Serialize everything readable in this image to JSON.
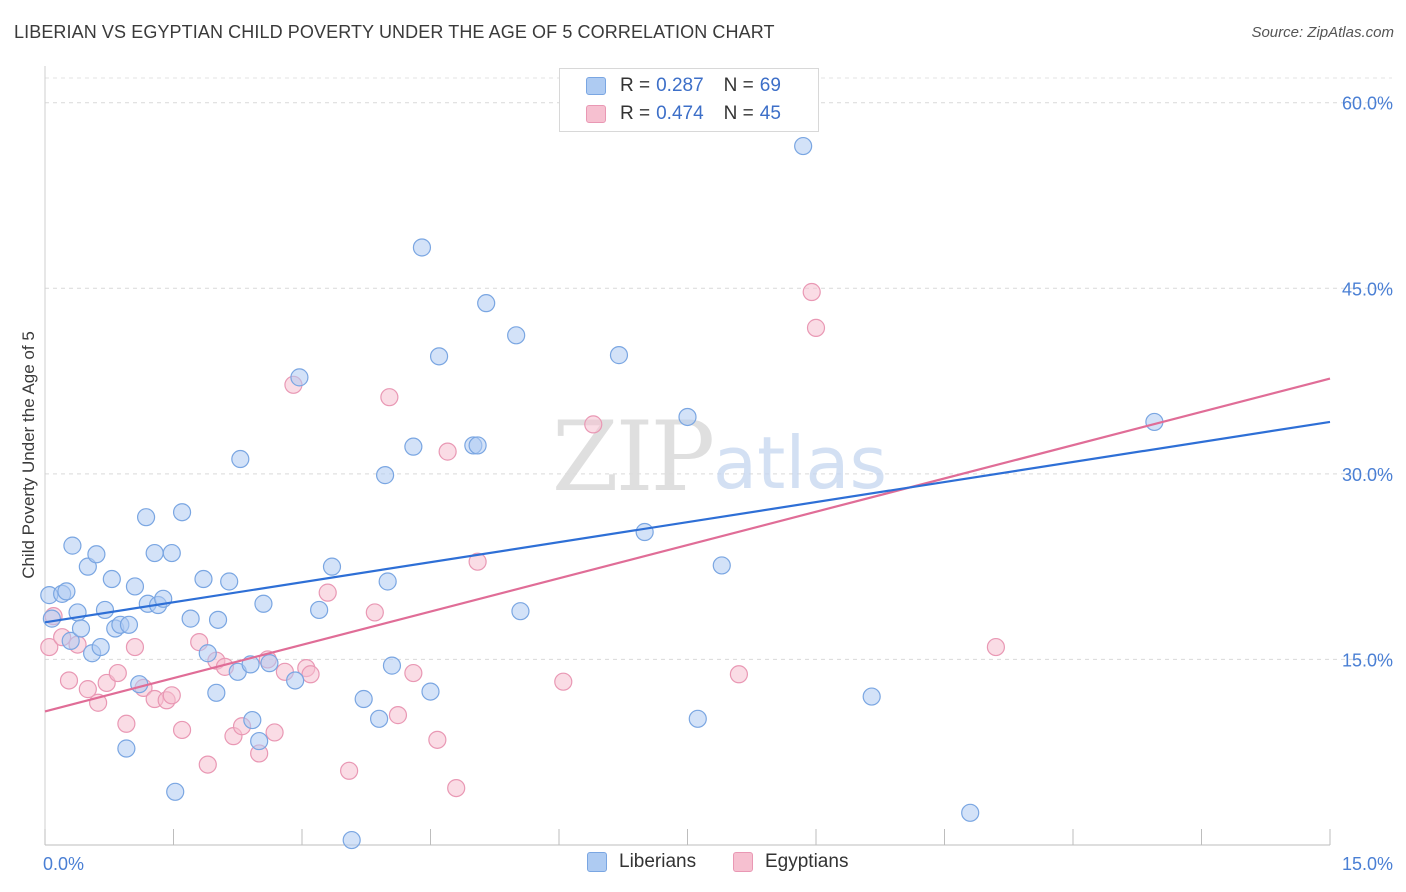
{
  "title": "LIBERIAN VS EGYPTIAN CHILD POVERTY UNDER THE AGE OF 5 CORRELATION CHART",
  "source": "Source: ZipAtlas.com",
  "watermark": {
    "zip": "ZIP",
    "atlas": "atlas"
  },
  "colors": {
    "liberian_fill": "#aecbf2",
    "liberian_stroke": "#7aa6e2",
    "liberian_line": "#2e6fd6",
    "egyptian_fill": "#f6c0d0",
    "egyptian_stroke": "#e998b4",
    "egyptian_line": "#e06d97",
    "tick_text": "#4a7fd4"
  },
  "legend": {
    "rows": [
      {
        "r_label": "R =",
        "r_value": "0.287",
        "n_label": "N =",
        "n_value": "69"
      },
      {
        "r_label": "R =",
        "r_value": "0.474",
        "n_label": "N =",
        "n_value": "45"
      }
    ]
  },
  "bottom_legend": {
    "liberians": "Liberians",
    "egyptians": "Egyptians"
  },
  "chart_data": {
    "type": "scatter",
    "title": "LIBERIAN VS EGYPTIAN CHILD POVERTY UNDER THE AGE OF 5 CORRELATION CHART",
    "xlabel": "",
    "ylabel": "Child Poverty Under the Age of 5",
    "xlim": [
      0,
      15
    ],
    "ylim": [
      0,
      62
    ],
    "x_ticks": [
      "0.0%",
      "15.0%"
    ],
    "y_ticks": [
      "15.0%",
      "30.0%",
      "45.0%",
      "60.0%"
    ],
    "y_tick_values": [
      15,
      30,
      45,
      60
    ],
    "grid": true,
    "legend_position": "top-center",
    "series": [
      {
        "name": "Liberians",
        "r": 0.287,
        "n": 69,
        "trend": {
          "x": [
            0,
            15
          ],
          "y": [
            18.0,
            34.2
          ]
        },
        "points": [
          [
            0.05,
            20.2
          ],
          [
            0.2,
            20.3
          ],
          [
            0.25,
            20.5
          ],
          [
            0.3,
            16.5
          ],
          [
            0.32,
            24.2
          ],
          [
            0.38,
            18.8
          ],
          [
            0.42,
            17.5
          ],
          [
            0.5,
            22.5
          ],
          [
            0.55,
            15.5
          ],
          [
            0.6,
            23.5
          ],
          [
            0.65,
            16.0
          ],
          [
            0.7,
            19.0
          ],
          [
            0.78,
            21.5
          ],
          [
            0.82,
            17.5
          ],
          [
            0.88,
            17.8
          ],
          [
            0.95,
            7.8
          ],
          [
            0.98,
            17.8
          ],
          [
            1.05,
            20.9
          ],
          [
            1.1,
            13.0
          ],
          [
            1.18,
            26.5
          ],
          [
            1.2,
            19.5
          ],
          [
            1.28,
            23.6
          ],
          [
            1.32,
            19.4
          ],
          [
            1.38,
            19.9
          ],
          [
            1.48,
            23.6
          ],
          [
            1.52,
            4.3
          ],
          [
            1.6,
            26.9
          ],
          [
            1.7,
            18.3
          ],
          [
            1.85,
            21.5
          ],
          [
            1.9,
            15.5
          ],
          [
            2.0,
            12.3
          ],
          [
            2.02,
            18.2
          ],
          [
            2.15,
            21.3
          ],
          [
            2.25,
            14.0
          ],
          [
            2.28,
            31.2
          ],
          [
            2.4,
            14.6
          ],
          [
            2.42,
            10.1
          ],
          [
            2.5,
            8.4
          ],
          [
            2.55,
            19.5
          ],
          [
            2.62,
            14.7
          ],
          [
            2.92,
            13.3
          ],
          [
            2.97,
            37.8
          ],
          [
            3.2,
            19.0
          ],
          [
            3.35,
            22.5
          ],
          [
            3.58,
            0.4
          ],
          [
            3.72,
            11.8
          ],
          [
            3.9,
            10.2
          ],
          [
            3.97,
            29.9
          ],
          [
            4.0,
            21.3
          ],
          [
            4.05,
            14.5
          ],
          [
            4.3,
            32.2
          ],
          [
            4.4,
            48.3
          ],
          [
            4.5,
            12.4
          ],
          [
            4.6,
            39.5
          ],
          [
            5.0,
            32.3
          ],
          [
            5.05,
            32.3
          ],
          [
            5.15,
            43.8
          ],
          [
            5.5,
            41.2
          ],
          [
            5.55,
            18.9
          ],
          [
            6.7,
            39.6
          ],
          [
            7.0,
            25.3
          ],
          [
            7.5,
            34.6
          ],
          [
            7.62,
            10.2
          ],
          [
            7.9,
            22.6
          ],
          [
            8.85,
            56.5
          ],
          [
            9.65,
            12.0
          ],
          [
            10.8,
            2.6
          ],
          [
            12.95,
            34.2
          ],
          [
            0.08,
            18.3
          ]
        ]
      },
      {
        "name": "Egyptians",
        "r": 0.474,
        "n": 45,
        "trend": {
          "x": [
            0,
            15
          ],
          "y": [
            10.8,
            37.7
          ]
        },
        "points": [
          [
            0.05,
            16.0
          ],
          [
            0.1,
            18.5
          ],
          [
            0.2,
            16.8
          ],
          [
            0.28,
            13.3
          ],
          [
            0.38,
            16.2
          ],
          [
            0.5,
            12.6
          ],
          [
            0.62,
            11.5
          ],
          [
            0.72,
            13.1
          ],
          [
            0.85,
            13.9
          ],
          [
            0.95,
            9.8
          ],
          [
            1.05,
            16.0
          ],
          [
            1.15,
            12.7
          ],
          [
            1.28,
            11.8
          ],
          [
            1.42,
            11.7
          ],
          [
            1.48,
            12.1
          ],
          [
            1.6,
            9.3
          ],
          [
            1.8,
            16.4
          ],
          [
            1.9,
            6.5
          ],
          [
            2.0,
            14.9
          ],
          [
            2.1,
            14.4
          ],
          [
            2.2,
            8.8
          ],
          [
            2.3,
            9.6
          ],
          [
            2.5,
            7.4
          ],
          [
            2.6,
            15.0
          ],
          [
            2.68,
            9.1
          ],
          [
            2.8,
            14.0
          ],
          [
            2.9,
            37.2
          ],
          [
            3.05,
            14.3
          ],
          [
            3.1,
            13.8
          ],
          [
            3.3,
            20.4
          ],
          [
            3.55,
            6.0
          ],
          [
            3.85,
            18.8
          ],
          [
            4.02,
            36.2
          ],
          [
            4.12,
            10.5
          ],
          [
            4.3,
            13.9
          ],
          [
            4.58,
            8.5
          ],
          [
            4.7,
            31.8
          ],
          [
            4.8,
            4.6
          ],
          [
            5.05,
            22.9
          ],
          [
            6.05,
            13.2
          ],
          [
            6.4,
            34.0
          ],
          [
            8.1,
            13.8
          ],
          [
            8.95,
            44.7
          ],
          [
            9.0,
            41.8
          ],
          [
            11.1,
            16.0
          ]
        ]
      }
    ]
  }
}
